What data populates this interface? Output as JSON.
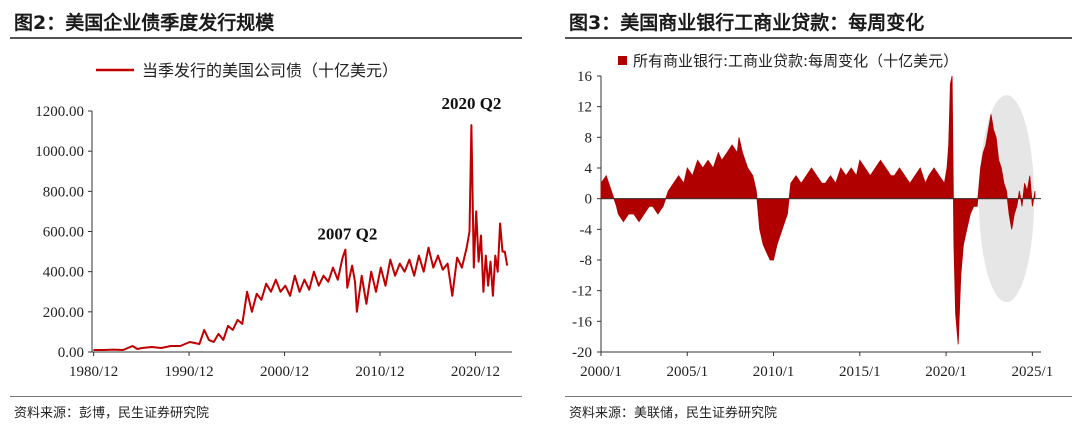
{
  "charts": [
    {
      "title": "图2：美国企业债季度发行规模",
      "source": "资料来源：彭博，民生证券研究院",
      "chart_data": {
        "type": "line",
        "legend": "当季发行的美国公司债（十亿美元）",
        "legend_position": "top",
        "grid": false,
        "ylim": [
          0,
          1200
        ],
        "y_ticks": [
          "0.00",
          "200.00",
          "400.00",
          "600.00",
          "800.00",
          "1000.00",
          "1200.00"
        ],
        "xlim": [
          1980.75,
          2024.75
        ],
        "x_ticks": [
          {
            "v": 1980.92,
            "label": "1980/12"
          },
          {
            "v": 1990.92,
            "label": "1990/12"
          },
          {
            "v": 2000.92,
            "label": "2000/12"
          },
          {
            "v": 2010.92,
            "label": "2010/12"
          },
          {
            "v": 2020.92,
            "label": "2020/12"
          }
        ],
        "color": "#c00000",
        "series": [
          {
            "x": [
              1980.9,
              1982,
              1983,
              1984,
              1985,
              1985.5,
              1986,
              1987,
              1988,
              1989,
              1990,
              1991,
              1992,
              1992.5,
              1993,
              1993.5,
              1994,
              1994.5,
              1995,
              1995.5,
              1996,
              1996.5,
              1997,
              1997.5,
              1998,
              1998.5,
              1999,
              1999.5,
              2000,
              2000.5,
              2001,
              2001.5,
              2002,
              2002.5,
              2003,
              2003.5,
              2004,
              2004.5,
              2005,
              2005.5,
              2006,
              2006.5,
              2007,
              2007.3,
              2007.5,
              2008,
              2008.3,
              2008.5,
              2009,
              2009.5,
              2010,
              2010.5,
              2011,
              2011.5,
              2012,
              2012.5,
              2013,
              2013.5,
              2014,
              2014.5,
              2015,
              2015.5,
              2016,
              2016.5,
              2017,
              2017.5,
              2018,
              2018.5,
              2019,
              2019.5,
              2020,
              2020.3,
              2020.5,
              2020.75,
              2021,
              2021.25,
              2021.5,
              2021.75,
              2022,
              2022.25,
              2022.5,
              2022.75,
              2023,
              2023.25,
              2023.5,
              2023.75,
              2024,
              2024.25
            ],
            "y": [
              10,
              10,
              12,
              10,
              30,
              15,
              20,
              25,
              20,
              30,
              30,
              50,
              40,
              110,
              60,
              50,
              90,
              60,
              130,
              110,
              160,
              140,
              300,
              200,
              290,
              260,
              340,
              300,
              360,
              300,
              330,
              280,
              380,
              300,
              360,
              310,
              400,
              330,
              380,
              350,
              420,
              360,
              470,
              510,
              320,
              430,
              350,
              200,
              380,
              240,
              400,
              300,
              420,
              330,
              460,
              380,
              440,
              400,
              460,
              380,
              480,
              400,
              520,
              420,
              480,
              410,
              440,
              280,
              470,
              420,
              520,
              600,
              1130,
              420,
              700,
              450,
              580,
              300,
              480,
              330,
              450,
              280,
              480,
              400,
              640,
              500,
              500,
              430
            ]
          }
        ],
        "annotations": [
          {
            "text": "2007 Q2",
            "x": 2007.5,
            "y": 560
          },
          {
            "text": "2020 Q2",
            "x": 2020.5,
            "y": 1210
          }
        ]
      }
    },
    {
      "title": "图3：美国商业银行工商业贷款：每周变化",
      "source": "资料来源：美联储，民生证券研究院",
      "chart_data": {
        "type": "bar",
        "legend": "所有商业银行:工商业贷款:每周变化（十亿美元）",
        "legend_position": "top",
        "grid": false,
        "ylim": [
          -20,
          16
        ],
        "y_ticks": [
          "-20",
          "-16",
          "-12",
          "-8",
          "-4",
          "0",
          "4",
          "8",
          "12",
          "16"
        ],
        "xlim": [
          2000,
          2025.5
        ],
        "x_ticks": [
          {
            "v": 2000,
            "label": "2000/1"
          },
          {
            "v": 2005,
            "label": "2005/1"
          },
          {
            "v": 2010,
            "label": "2010/1"
          },
          {
            "v": 2015,
            "label": "2015/1"
          },
          {
            "v": 2020,
            "label": "2020/1"
          },
          {
            "v": 2025,
            "label": "2025/1"
          }
        ],
        "color": "#b00000",
        "highlight": {
          "x_center": 2023.5,
          "y_center": 0,
          "x_radius": 1.6,
          "y_radius": 13.5,
          "color": "#e6e6e6"
        },
        "series": [
          {
            "x": [
              2000,
              2000.3,
              2000.6,
              2000.9,
              2001,
              2001.3,
              2001.6,
              2001.9,
              2002.2,
              2002.5,
              2002.8,
              2003,
              2003.3,
              2003.6,
              2003.9,
              2004.2,
              2004.5,
              2004.8,
              2005,
              2005.3,
              2005.6,
              2005.9,
              2006.2,
              2006.5,
              2006.8,
              2007,
              2007.3,
              2007.6,
              2007.9,
              2008,
              2008.2,
              2008.5,
              2008.8,
              2009,
              2009.2,
              2009.4,
              2009.6,
              2009.8,
              2010,
              2010.2,
              2010.5,
              2010.8,
              2011,
              2011.3,
              2011.6,
              2011.9,
              2012.2,
              2012.5,
              2012.8,
              2013,
              2013.3,
              2013.6,
              2013.9,
              2014.2,
              2014.5,
              2014.8,
              2015,
              2015.3,
              2015.6,
              2015.9,
              2016.2,
              2016.5,
              2016.8,
              2017,
              2017.3,
              2017.6,
              2017.9,
              2018.2,
              2018.5,
              2018.8,
              2019,
              2019.3,
              2019.6,
              2019.9,
              2020.05,
              2020.15,
              2020.25,
              2020.35,
              2020.45,
              2020.55,
              2020.7,
              2020.85,
              2021,
              2021.2,
              2021.4,
              2021.6,
              2021.8,
              2022,
              2022.15,
              2022.3,
              2022.45,
              2022.6,
              2022.75,
              2022.9,
              2023.05,
              2023.2,
              2023.35,
              2023.5,
              2023.65,
              2023.8,
              2023.95,
              2024.1,
              2024.25,
              2024.4,
              2024.55,
              2024.7,
              2024.85,
              2025,
              2025.15
            ],
            "y": [
              2,
              3,
              1,
              -1,
              -2,
              -3,
              -2,
              -2,
              -3,
              -2,
              -1,
              -1,
              -2,
              -1,
              1,
              2,
              3,
              2,
              4,
              3,
              5,
              4,
              5,
              4,
              6,
              5,
              6,
              7,
              6,
              8,
              6,
              4,
              3,
              1,
              -4,
              -6,
              -7,
              -8,
              -8,
              -6,
              -4,
              -2,
              2,
              3,
              2,
              3,
              4,
              3,
              2,
              2,
              3,
              2,
              4,
              3,
              4,
              3,
              5,
              4,
              3,
              4,
              5,
              4,
              3,
              3,
              4,
              3,
              2,
              3,
              4,
              2,
              3,
              4,
              3,
              2,
              4,
              7,
              15,
              16,
              -6,
              -15,
              -19,
              -10,
              -6,
              -4,
              -2,
              -1,
              -1,
              4,
              6,
              7,
              9,
              11,
              9,
              8,
              5,
              4,
              2,
              1,
              -2,
              -4,
              -2,
              -1,
              1,
              -1,
              2,
              1,
              3,
              -1,
              1
            ]
          }
        ]
      }
    }
  ]
}
